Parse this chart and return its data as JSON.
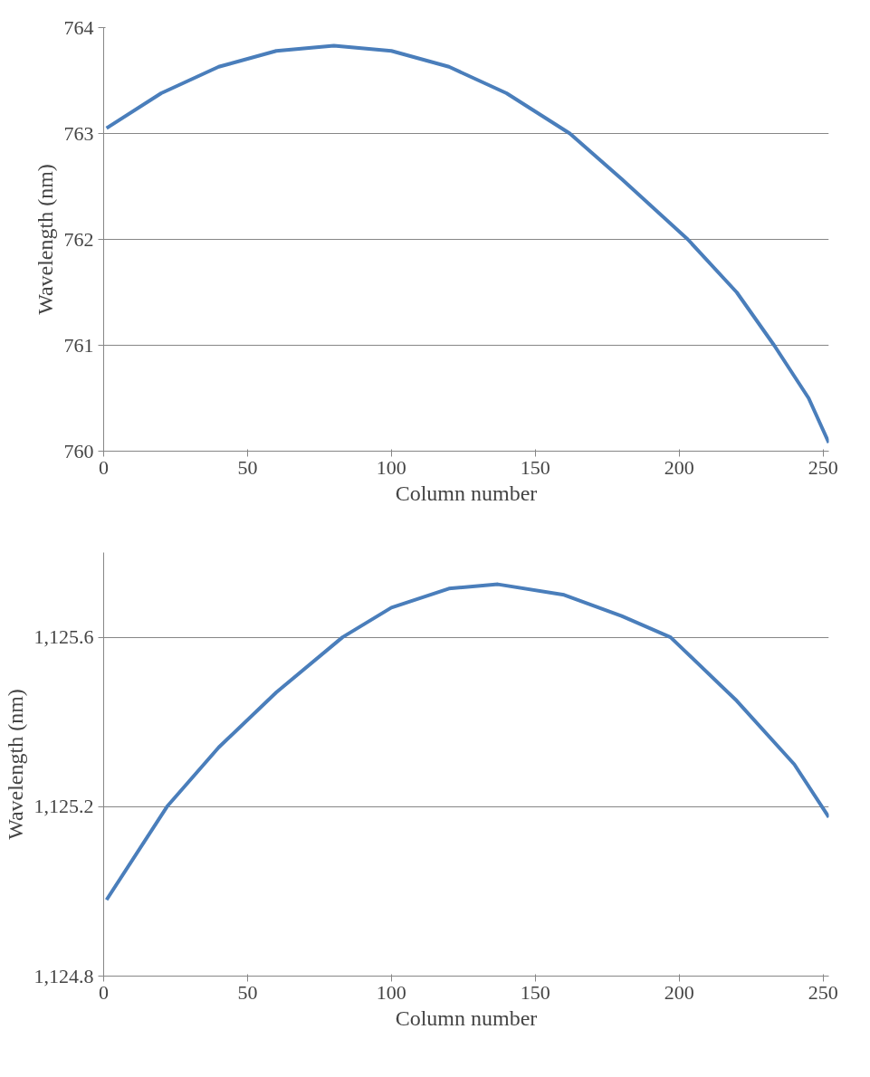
{
  "chart_data": [
    {
      "type": "line",
      "xlabel": "Column number",
      "ylabel": "Wavelength (nm)",
      "x": [
        1,
        20,
        40,
        60,
        80,
        100,
        120,
        140,
        162,
        180,
        203,
        220,
        233,
        245,
        252
      ],
      "series": [
        {
          "color": "#4a7ebb",
          "values": [
            763.05,
            763.38,
            763.63,
            763.78,
            763.83,
            763.78,
            763.63,
            763.38,
            763.0,
            762.57,
            762.0,
            761.5,
            761.0,
            760.5,
            760.08
          ]
        }
      ],
      "xlim": [
        0,
        252
      ],
      "ylim": [
        760,
        764
      ],
      "xticks": [
        0,
        50,
        100,
        150,
        200,
        250
      ],
      "yticks": [
        760,
        761,
        762,
        763,
        764
      ],
      "grid": "y"
    },
    {
      "type": "line",
      "xlabel": "Column number",
      "ylabel": "Wavelength (nm)",
      "x": [
        1,
        22,
        40,
        60,
        83,
        100,
        120,
        137,
        160,
        180,
        197,
        220,
        240,
        252
      ],
      "series": [
        {
          "color": "#4a7ebb",
          "values": [
            1124.98,
            1125.2,
            1125.34,
            1125.47,
            1125.6,
            1125.67,
            1125.715,
            1125.725,
            1125.7,
            1125.65,
            1125.6,
            1125.45,
            1125.3,
            1125.175
          ]
        }
      ],
      "xlim": [
        0,
        252
      ],
      "ylim": [
        1124.8,
        1125.8
      ],
      "xticks": [
        0,
        50,
        100,
        150,
        200,
        250
      ],
      "yticks": [
        {
          "value": 1124.8,
          "label": "1,124.8"
        },
        {
          "value": 1125.2,
          "label": "1,125.2"
        },
        {
          "value": 1125.6,
          "label": "1,125.6"
        }
      ],
      "grid": "y"
    }
  ]
}
